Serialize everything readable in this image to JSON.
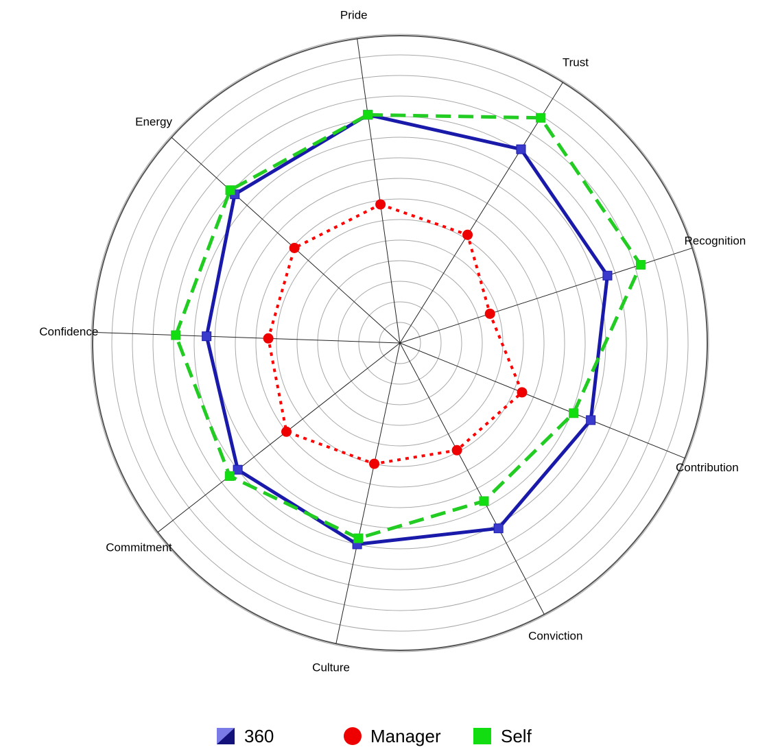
{
  "chart_data": {
    "type": "radar",
    "title": "",
    "axes": [
      "Pride",
      "Trust",
      "Recognition",
      "Contribution",
      "Conviction",
      "Culture",
      "Commitment",
      "Confidence",
      "Energy"
    ],
    "r_max": 15,
    "rings": 15,
    "grid": true,
    "legend_position": "bottom",
    "series": [
      {
        "name": "360",
        "values": [
          11.2,
          11.1,
          10.6,
          10.0,
          10.2,
          10.0,
          10.0,
          9.4,
          10.8
        ],
        "color": "#1a1aaa",
        "marker_color": "#3a3acc",
        "line_style": "solid",
        "marker": "square"
      },
      {
        "name": "Manager",
        "values": [
          6.8,
          6.2,
          4.6,
          6.4,
          5.9,
          6.0,
          7.0,
          6.4,
          6.9
        ],
        "color": "#ff0000",
        "marker_color": "#ee0000",
        "line_style": "dotted",
        "marker": "circle"
      },
      {
        "name": "Self",
        "values": [
          11.2,
          12.9,
          12.3,
          9.1,
          8.7,
          9.7,
          10.5,
          10.9,
          11.1
        ],
        "color": "#22cc22",
        "marker_color": "#11dd11",
        "line_style": "dashed",
        "marker": "square"
      }
    ]
  }
}
